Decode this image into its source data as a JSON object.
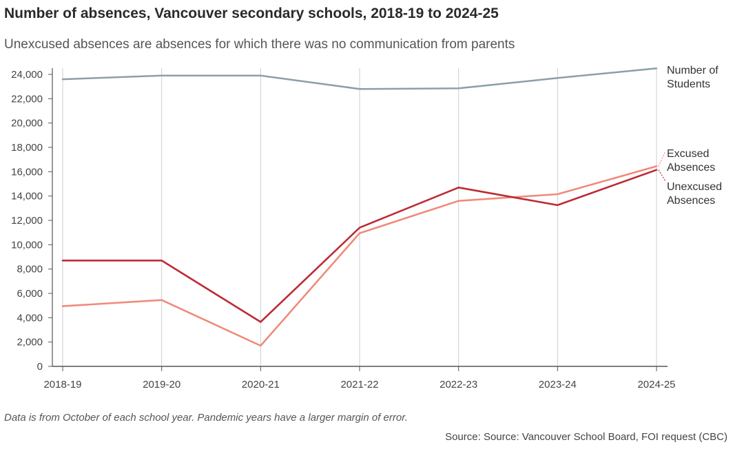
{
  "chart_data": {
    "type": "line",
    "title": "Number of absences, Vancouver secondary schools, 2018-19 to 2024-25",
    "subtitle": "Unexcused absences are absences for which there was no communication from parents",
    "xlabel": "",
    "ylabel": "",
    "categories": [
      "2018-19",
      "2019-20",
      "2020-21",
      "2021-22",
      "2022-23",
      "2023-24",
      "2024-25"
    ],
    "ylim": [
      0,
      24000
    ],
    "yticks": [
      0,
      2000,
      4000,
      6000,
      8000,
      10000,
      12000,
      14000,
      16000,
      18000,
      20000,
      22000,
      24000
    ],
    "ytick_labels": [
      "0",
      "2,000",
      "4,000",
      "6,000",
      "8,000",
      "10,000",
      "12,000",
      "14,000",
      "16,000",
      "18,000",
      "20,000",
      "22,000",
      "24,000"
    ],
    "grid": "vertical",
    "series": [
      {
        "name": "Number of Students",
        "label_lines": [
          "Number of",
          "Students"
        ],
        "color": "#8c9ea7",
        "values": [
          23600,
          23900,
          23900,
          22800,
          22850,
          23700,
          24500
        ]
      },
      {
        "name": "Excused Absences",
        "label_lines": [
          "Excused",
          "Absences"
        ],
        "color": "#ef8a7a",
        "values": [
          4950,
          5450,
          1700,
          10950,
          13600,
          14150,
          16450
        ]
      },
      {
        "name": "Unexcused Absences",
        "label_lines": [
          "Unexcused",
          "Absences"
        ],
        "color": "#bd2a33",
        "values": [
          8700,
          8700,
          3650,
          11400,
          14700,
          13250,
          16150
        ]
      }
    ],
    "note": "Data is from October of each school year. Pandemic years have a larger margin of error.",
    "source": "Source: Source: Vancouver School Board, FOI request (CBC)"
  }
}
